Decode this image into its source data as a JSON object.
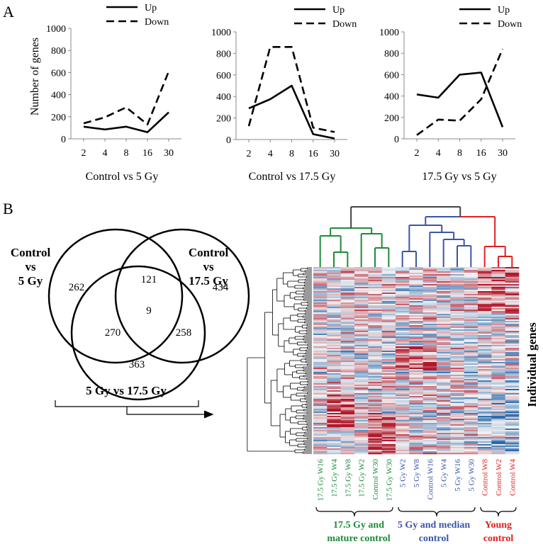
{
  "panels": {
    "a": "A",
    "b": "B"
  },
  "chart_data": [
    {
      "type": "line",
      "title": "Control vs 5 Gy",
      "ylabel": "Number of genes",
      "categories": [
        "2",
        "4",
        "8",
        "16",
        "30"
      ],
      "ylim": [
        0,
        1000
      ],
      "yticks": [
        0,
        200,
        400,
        600,
        800,
        1000
      ],
      "legend": "top-right",
      "series": [
        {
          "name": "Up",
          "style": "solid",
          "values": [
            110,
            85,
            110,
            60,
            240
          ]
        },
        {
          "name": "Down",
          "style": "dashed",
          "values": [
            140,
            195,
            285,
            130,
            610
          ]
        }
      ]
    },
    {
      "type": "line",
      "title": "Control vs 17.5 Gy",
      "categories": [
        "2",
        "4",
        "8",
        "16",
        "30"
      ],
      "ylim": [
        0,
        1000
      ],
      "yticks": [
        0,
        200,
        400,
        600,
        800,
        1000
      ],
      "legend": "top-right",
      "series": [
        {
          "name": "Up",
          "style": "solid",
          "values": [
            290,
            375,
            500,
            50,
            10
          ]
        },
        {
          "name": "Down",
          "style": "dashed",
          "values": [
            125,
            860,
            860,
            110,
            70
          ]
        }
      ]
    },
    {
      "type": "line",
      "title": "17.5 Gy vs 5 Gy",
      "categories": [
        "2",
        "4",
        "8",
        "16",
        "30"
      ],
      "ylim": [
        0,
        1000
      ],
      "yticks": [
        0,
        200,
        400,
        600,
        800,
        1000
      ],
      "legend": "top-right",
      "series": [
        {
          "name": "Up",
          "style": "solid",
          "values": [
            415,
            385,
            600,
            620,
            110
          ]
        },
        {
          "name": "Down",
          "style": "dashed",
          "values": [
            35,
            180,
            170,
            370,
            840
          ]
        }
      ]
    },
    {
      "type": "heatmap",
      "ylabel": "Individual genes",
      "columns": [
        {
          "label": "17.5 Gy W16",
          "group": 0
        },
        {
          "label": "17.5 Gy W4",
          "group": 0
        },
        {
          "label": "17.5 Gy W8",
          "group": 0
        },
        {
          "label": "17.5 Gy W2",
          "group": 0
        },
        {
          "label": "Control W30",
          "group": 0
        },
        {
          "label": "17.5 Gy W30",
          "group": 0
        },
        {
          "label": "5 Gy W2",
          "group": 1
        },
        {
          "label": "5 Gy W8",
          "group": 1
        },
        {
          "label": "Control W16",
          "group": 1
        },
        {
          "label": "5 Gy W4",
          "group": 1
        },
        {
          "label": "5 Gy W16",
          "group": 1
        },
        {
          "label": "5 Gy W30",
          "group": 1
        },
        {
          "label": "Control W8",
          "group": 2
        },
        {
          "label": "Control W2",
          "group": 2
        },
        {
          "label": "Control W4",
          "group": 2
        }
      ],
      "groups": [
        {
          "label": [
            "17.5 Gy and",
            "mature control"
          ],
          "color": "#1e8a3a"
        },
        {
          "label": [
            "5 Gy and median",
            "control"
          ],
          "color": "#3a55a8"
        },
        {
          "label": [
            "Young",
            "control"
          ],
          "color": "#e02020"
        }
      ],
      "colormap": [
        "#2166ac",
        "#f2f2f2",
        "#b2182b"
      ]
    }
  ],
  "venn": {
    "sets": [
      {
        "label": [
          "Control",
          "vs",
          "5 Gy"
        ]
      },
      {
        "label": [
          "Control",
          "vs",
          "17.5 Gy"
        ]
      },
      {
        "label": [
          "5 Gy vs 17.5 Gy"
        ]
      }
    ],
    "regions": {
      "a_only": "262",
      "ab": "121",
      "b_only": "434",
      "abc": "9",
      "ac": "270",
      "bc": "258",
      "c_only": "363"
    }
  }
}
